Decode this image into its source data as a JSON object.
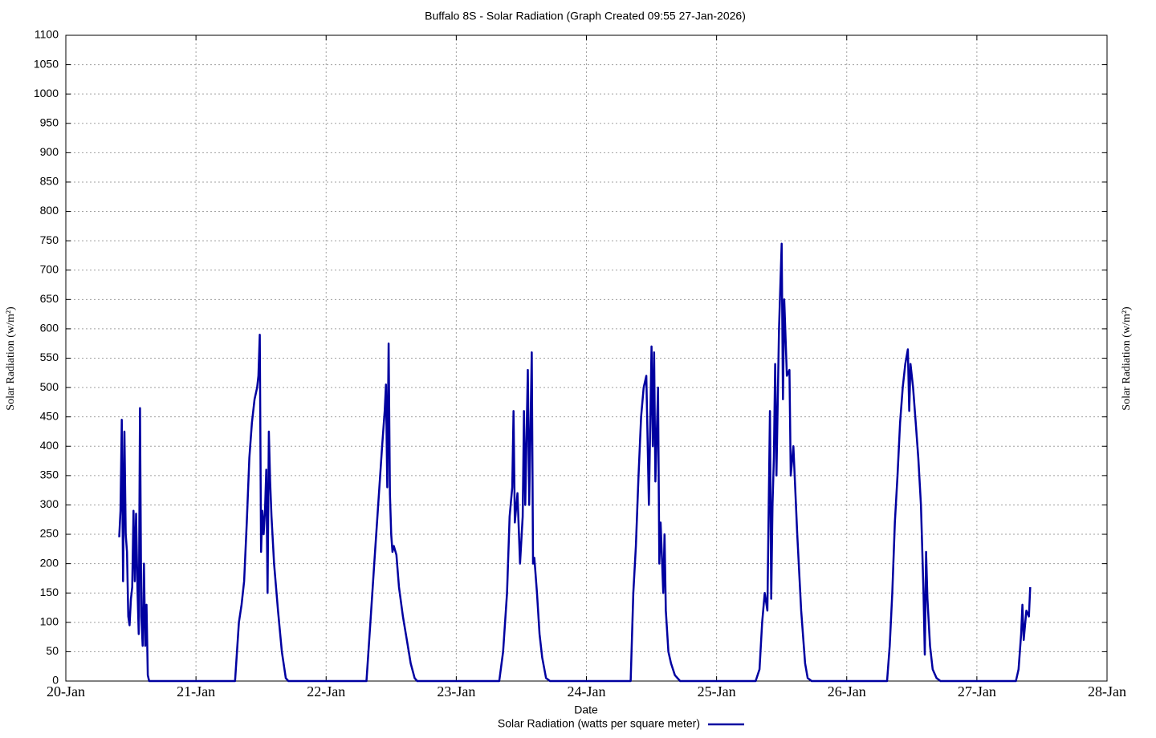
{
  "chart_data": {
    "type": "line",
    "title": "Buffalo 8S - Solar Radiation (Graph Created 09:55 27-Jan-2026)",
    "xlabel": "Date",
    "ylabel": "Solar Radiation (w/m²)",
    "y2label": "Solar Radiation (w/m²)",
    "xlim": [
      0,
      8
    ],
    "xticks": [
      {
        "value": 0,
        "label": "20-Jan"
      },
      {
        "value": 1,
        "label": "21-Jan"
      },
      {
        "value": 2,
        "label": "22-Jan"
      },
      {
        "value": 3,
        "label": "23-Jan"
      },
      {
        "value": 4,
        "label": "24-Jan"
      },
      {
        "value": 5,
        "label": "25-Jan"
      },
      {
        "value": 6,
        "label": "26-Jan"
      },
      {
        "value": 7,
        "label": "27-Jan"
      },
      {
        "value": 8,
        "label": "28-Jan"
      }
    ],
    "ylim": [
      0,
      1100
    ],
    "yticks": [
      0,
      50,
      100,
      150,
      200,
      250,
      300,
      350,
      400,
      450,
      500,
      550,
      600,
      650,
      700,
      750,
      800,
      850,
      900,
      950,
      1000,
      1050,
      1100
    ],
    "grid": true,
    "x": [
      0.41,
      0.42,
      0.43,
      0.44,
      0.45,
      0.46,
      0.47,
      0.48,
      0.49,
      0.5,
      0.51,
      0.52,
      0.53,
      0.54,
      0.55,
      0.56,
      0.57,
      0.58,
      0.59,
      0.6,
      0.61,
      0.62,
      0.63,
      0.64,
      1.3,
      1.33,
      1.35,
      1.37,
      1.39,
      1.41,
      1.43,
      1.45,
      1.47,
      1.48,
      1.49,
      1.5,
      1.51,
      1.52,
      1.53,
      1.54,
      1.55,
      1.56,
      1.57,
      1.58,
      1.6,
      1.63,
      1.66,
      1.69,
      1.71,
      2.31,
      2.34,
      2.37,
      2.4,
      2.43,
      2.45,
      2.46,
      2.47,
      2.48,
      2.49,
      2.5,
      2.51,
      2.52,
      2.54,
      2.56,
      2.59,
      2.62,
      2.65,
      2.68,
      2.7,
      3.33,
      3.36,
      3.39,
      3.41,
      3.43,
      3.44,
      3.45,
      3.47,
      3.49,
      3.51,
      3.52,
      3.53,
      3.55,
      3.56,
      3.58,
      3.59,
      3.6,
      3.62,
      3.64,
      3.66,
      3.69,
      3.72,
      4.34,
      4.36,
      4.38,
      4.4,
      4.42,
      4.44,
      4.46,
      4.48,
      4.5,
      4.51,
      4.52,
      4.53,
      4.55,
      4.56,
      4.57,
      4.59,
      4.6,
      4.61,
      4.63,
      4.65,
      4.68,
      4.72,
      5.3,
      5.33,
      5.35,
      5.37,
      5.39,
      5.41,
      5.42,
      5.43,
      5.44,
      5.45,
      5.46,
      5.48,
      5.5,
      5.51,
      5.52,
      5.54,
      5.56,
      5.57,
      5.59,
      5.62,
      5.65,
      5.68,
      5.7,
      5.73,
      6.31,
      6.33,
      6.35,
      6.37,
      6.39,
      6.41,
      6.43,
      6.45,
      6.47,
      6.48,
      6.49,
      6.51,
      6.53,
      6.55,
      6.57,
      6.59,
      6.6,
      6.61,
      6.62,
      6.64,
      6.66,
      6.69,
      6.72,
      7.3,
      7.32,
      7.34,
      7.35,
      7.36,
      7.38,
      7.4,
      7.41
    ],
    "series": [
      {
        "name": "Solar Radiation (watts per square meter)",
        "color": "#0000a0",
        "values": [
          245,
          290,
          445,
          170,
          425,
          250,
          220,
          110,
          95,
          140,
          160,
          290,
          170,
          285,
          160,
          80,
          465,
          110,
          60,
          200,
          60,
          130,
          10,
          0,
          0,
          100,
          130,
          170,
          270,
          380,
          440,
          480,
          500,
          520,
          590,
          220,
          290,
          250,
          290,
          360,
          150,
          425,
          340,
          280,
          200,
          120,
          50,
          5,
          0,
          0,
          100,
          200,
          300,
          400,
          460,
          505,
          330,
          575,
          320,
          250,
          220,
          230,
          215,
          160,
          110,
          70,
          30,
          5,
          0,
          0,
          50,
          150,
          280,
          330,
          460,
          270,
          320,
          200,
          280,
          460,
          300,
          530,
          300,
          560,
          200,
          210,
          150,
          80,
          40,
          5,
          0,
          0,
          150,
          230,
          350,
          450,
          500,
          520,
          300,
          570,
          400,
          560,
          340,
          500,
          200,
          270,
          150,
          250,
          120,
          50,
          30,
          10,
          0,
          0,
          20,
          100,
          150,
          120,
          460,
          140,
          300,
          380,
          540,
          350,
          600,
          745,
          480,
          650,
          520,
          530,
          350,
          400,
          250,
          120,
          30,
          5,
          0,
          0,
          60,
          150,
          270,
          350,
          440,
          500,
          540,
          565,
          460,
          540,
          500,
          440,
          380,
          300,
          150,
          45,
          220,
          140,
          60,
          20,
          5,
          0,
          0,
          20,
          80,
          130,
          70,
          120,
          110,
          160
        ]
      }
    ]
  }
}
